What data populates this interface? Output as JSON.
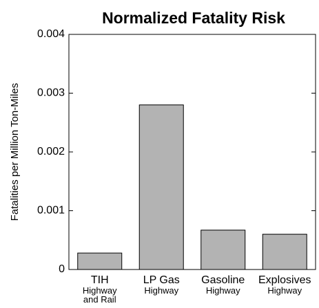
{
  "chart_data": {
    "type": "bar",
    "title": "Normalized Fatality Risk",
    "ylabel": "Fatalities per Million Ton-Miles",
    "categories": [
      "TIH",
      "LP Gas",
      "Gasoline",
      "Explosives"
    ],
    "category_sublabels": [
      "Highway and Rail",
      "Highway",
      "Highway",
      "Highway"
    ],
    "values": [
      0.00028,
      0.0028,
      0.00067,
      0.0006
    ],
    "color": "#b3b3b3",
    "ylim": [
      0,
      0.004
    ],
    "yticks": [
      0,
      0.001,
      0.002,
      0.003,
      0.004
    ],
    "grid": false
  }
}
